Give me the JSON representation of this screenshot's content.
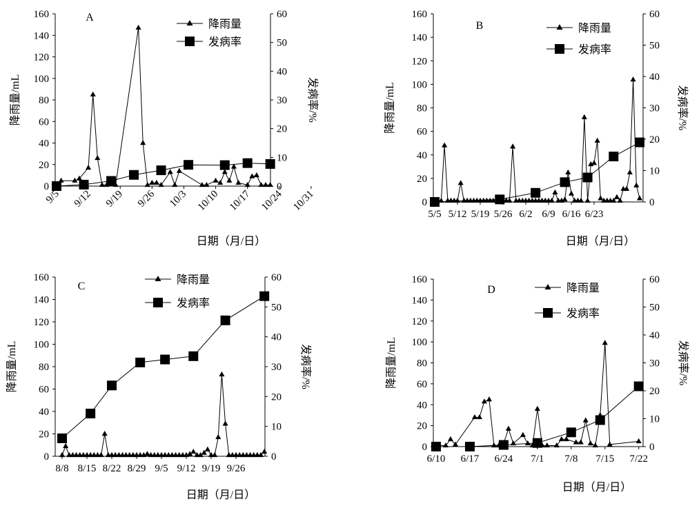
{
  "chart_data": [
    {
      "type": "line",
      "panel_label": "A",
      "xlabel": "日期（月/日）",
      "ylabel": "降雨量/mL",
      "y2label": "发病率/%",
      "ylim": [
        0,
        160
      ],
      "y2lim": [
        0,
        60
      ],
      "yticks": [
        0,
        20,
        40,
        60,
        80,
        100,
        120,
        140,
        160
      ],
      "y2ticks": [
        0,
        10,
        20,
        30,
        40,
        50,
        60
      ],
      "x_tick_labels": [
        "9/5",
        "9/12",
        "9/19",
        "9/26",
        "10/3",
        "10/10",
        "10/17",
        "10/24",
        "10/31"
      ],
      "x_tick_style": "rotated",
      "legend": [
        "降雨量",
        "发病率"
      ],
      "legend_position": "top-right",
      "series": [
        {
          "name": "降雨量",
          "marker": "triangle",
          "axis": "left",
          "points": [
            [
              0,
              1
            ],
            [
              1,
              5
            ],
            [
              4,
              5
            ],
            [
              5,
              7
            ],
            [
              7,
              17
            ],
            [
              8,
              85
            ],
            [
              9,
              26
            ],
            [
              10,
              1
            ],
            [
              11,
              1
            ],
            [
              13,
              1
            ],
            [
              18,
              147
            ],
            [
              19,
              40
            ],
            [
              20,
              1
            ],
            [
              21,
              3
            ],
            [
              22,
              3
            ],
            [
              23,
              1
            ],
            [
              25,
              13
            ],
            [
              26,
              1
            ],
            [
              27,
              14
            ],
            [
              32,
              1
            ],
            [
              33,
              1
            ],
            [
              35,
              5
            ],
            [
              36,
              3
            ],
            [
              37,
              13
            ],
            [
              38,
              5
            ],
            [
              39,
              18
            ],
            [
              40,
              3
            ],
            [
              42,
              1
            ],
            [
              43,
              9
            ],
            [
              44,
              10
            ],
            [
              45,
              1
            ],
            [
              46,
              1
            ],
            [
              47,
              1
            ]
          ]
        },
        {
          "name": "发病率",
          "marker": "square",
          "axis": "right",
          "points": [
            [
              0,
              0
            ],
            [
              6,
              0.5
            ],
            [
              12,
              1.8
            ],
            [
              17,
              3.9
            ],
            [
              23,
              5.5
            ],
            [
              29,
              7.4
            ],
            [
              37,
              7.3
            ],
            [
              42,
              8.0
            ],
            [
              47,
              7.7
            ]
          ]
        }
      ]
    },
    {
      "type": "line",
      "panel_label": "B",
      "xlabel": "日期（月/日）",
      "ylabel": "降雨量/mL",
      "y2label": "发病率/%",
      "ylim": [
        0,
        160
      ],
      "y2lim": [
        0,
        60
      ],
      "yticks": [
        0,
        20,
        40,
        60,
        80,
        100,
        120,
        140,
        160
      ],
      "y2ticks": [
        0,
        10,
        20,
        30,
        40,
        50,
        60
      ],
      "x_tick_labels": [
        "5/5",
        "5/12",
        "5/19",
        "5/26",
        "6/2",
        "6/9",
        "6/16",
        "6/23"
      ],
      "x_tick_style": "horizontal",
      "legend": [
        "降雨量",
        "发病率"
      ],
      "legend_position": "top-right",
      "series": [
        {
          "name": "降雨量",
          "marker": "triangle",
          "axis": "left",
          "points": [
            [
              0,
              1
            ],
            [
              1,
              1
            ],
            [
              2,
              1
            ],
            [
              3,
              48
            ],
            [
              4,
              1
            ],
            [
              5,
              1
            ],
            [
              6,
              1
            ],
            [
              7,
              1
            ],
            [
              8,
              16
            ],
            [
              9,
              1
            ],
            [
              10,
              1
            ],
            [
              11,
              1
            ],
            [
              12,
              1
            ],
            [
              13,
              1
            ],
            [
              14,
              1
            ],
            [
              15,
              1
            ],
            [
              16,
              1
            ],
            [
              17,
              1
            ],
            [
              18,
              1
            ],
            [
              19,
              1
            ],
            [
              20,
              1
            ],
            [
              21,
              1
            ],
            [
              22,
              1
            ],
            [
              23,
              1
            ],
            [
              24,
              47
            ],
            [
              25,
              1
            ],
            [
              26,
              1
            ],
            [
              27,
              1
            ],
            [
              28,
              1
            ],
            [
              29,
              1
            ],
            [
              30,
              1
            ],
            [
              31,
              1
            ],
            [
              32,
              1
            ],
            [
              33,
              1
            ],
            [
              34,
              1
            ],
            [
              35,
              1
            ],
            [
              36,
              1
            ],
            [
              37,
              8
            ],
            [
              38,
              1
            ],
            [
              39,
              1
            ],
            [
              40,
              2
            ],
            [
              41,
              25
            ],
            [
              42,
              7
            ],
            [
              43,
              1
            ],
            [
              44,
              1
            ],
            [
              45,
              1
            ],
            [
              46,
              72
            ],
            [
              47,
              1
            ],
            [
              48,
              32
            ],
            [
              49,
              33
            ],
            [
              50,
              52
            ],
            [
              51,
              3
            ],
            [
              52,
              1
            ],
            [
              53,
              1
            ],
            [
              54,
              1
            ],
            [
              55,
              1
            ],
            [
              56,
              4
            ],
            [
              57,
              1
            ],
            [
              58,
              11
            ],
            [
              59,
              11
            ],
            [
              60,
              25
            ],
            [
              61,
              104
            ],
            [
              62,
              14
            ],
            [
              63,
              3
            ]
          ]
        },
        {
          "name": "发病率",
          "marker": "square",
          "axis": "right",
          "points": [
            [
              0,
              0
            ],
            [
              20,
              0.8
            ],
            [
              31,
              2.9
            ],
            [
              40,
              6.3
            ],
            [
              47,
              7.8
            ],
            [
              55,
              14.5
            ],
            [
              63,
              19.0
            ]
          ]
        }
      ]
    },
    {
      "type": "line",
      "panel_label": "C",
      "xlabel": "日期（月/日）",
      "ylabel": "降雨量/mL",
      "y2label": "发病率/%",
      "ylim": [
        0,
        160
      ],
      "y2lim": [
        0,
        60
      ],
      "yticks": [
        0,
        20,
        40,
        60,
        80,
        100,
        120,
        140,
        160
      ],
      "y2ticks": [
        0,
        10,
        20,
        30,
        40,
        50,
        60
      ],
      "x_tick_labels": [
        "8/8",
        "8/15",
        "8/22",
        "8/29",
        "9/5",
        "9/12",
        "9/19",
        "9/26"
      ],
      "x_tick_style": "horizontal",
      "legend": [
        "降雨量",
        "发病率"
      ],
      "legend_position": "top-center",
      "series": [
        {
          "name": "降雨量",
          "marker": "triangle",
          "axis": "left",
          "points": [
            [
              0,
              1
            ],
            [
              1,
              9
            ],
            [
              2,
              1
            ],
            [
              3,
              1
            ],
            [
              4,
              1
            ],
            [
              5,
              1
            ],
            [
              6,
              1
            ],
            [
              7,
              1
            ],
            [
              8,
              1
            ],
            [
              9,
              1
            ],
            [
              10,
              1
            ],
            [
              11,
              1
            ],
            [
              12,
              20
            ],
            [
              13,
              1
            ],
            [
              14,
              1
            ],
            [
              15,
              1
            ],
            [
              16,
              1
            ],
            [
              17,
              1
            ],
            [
              18,
              1
            ],
            [
              19,
              1
            ],
            [
              20,
              1
            ],
            [
              21,
              1
            ],
            [
              22,
              1
            ],
            [
              23,
              1
            ],
            [
              24,
              2
            ],
            [
              25,
              1
            ],
            [
              26,
              1
            ],
            [
              27,
              1
            ],
            [
              28,
              1
            ],
            [
              29,
              1
            ],
            [
              30,
              1
            ],
            [
              31,
              1
            ],
            [
              32,
              1
            ],
            [
              33,
              1
            ],
            [
              34,
              1
            ],
            [
              35,
              1
            ],
            [
              36,
              2
            ],
            [
              37,
              4
            ],
            [
              38,
              1
            ],
            [
              39,
              1
            ],
            [
              40,
              3
            ],
            [
              41,
              6
            ],
            [
              42,
              1
            ],
            [
              43,
              1
            ],
            [
              44,
              17
            ],
            [
              45,
              73
            ],
            [
              46,
              29
            ],
            [
              47,
              1
            ],
            [
              48,
              1
            ],
            [
              49,
              1
            ],
            [
              50,
              1
            ],
            [
              51,
              1
            ],
            [
              52,
              1
            ],
            [
              53,
              1
            ],
            [
              54,
              1
            ],
            [
              55,
              1
            ],
            [
              56,
              1
            ],
            [
              57,
              4
            ]
          ]
        },
        {
          "name": "发病率",
          "marker": "square",
          "axis": "right",
          "points": [
            [
              0,
              6.0
            ],
            [
              8,
              14.3
            ],
            [
              14,
              23.7
            ],
            [
              22,
              31.4
            ],
            [
              29,
              32.4
            ],
            [
              37,
              33.5
            ],
            [
              46,
              45.5
            ],
            [
              57,
              53.6
            ]
          ]
        }
      ]
    },
    {
      "type": "line",
      "panel_label": "D",
      "xlabel": "日期（月/日）",
      "ylabel": "降雨量/mL",
      "y2label": "发病率/%",
      "ylim": [
        0,
        160
      ],
      "y2lim": [
        0,
        60
      ],
      "yticks": [
        0,
        20,
        40,
        60,
        80,
        100,
        120,
        140,
        160
      ],
      "y2ticks": [
        0,
        10,
        20,
        30,
        40,
        50,
        60
      ],
      "x_tick_labels": [
        "6/10",
        "6/17",
        "6/24",
        "7/1",
        "7/8",
        "7/15",
        "7/22"
      ],
      "x_tick_style": "horizontal",
      "legend": [
        "降雨量",
        "发病率"
      ],
      "legend_position": "top-center",
      "series": [
        {
          "name": "降雨量",
          "marker": "triangle",
          "axis": "left",
          "points": [
            [
              0,
              1
            ],
            [
              2,
              1
            ],
            [
              3,
              7
            ],
            [
              4,
              2
            ],
            [
              8,
              28
            ],
            [
              9,
              28
            ],
            [
              10,
              43
            ],
            [
              11,
              45
            ],
            [
              12,
              1
            ],
            [
              13,
              1
            ],
            [
              14,
              3
            ],
            [
              15,
              17
            ],
            [
              16,
              3
            ],
            [
              18,
              11
            ],
            [
              19,
              3
            ],
            [
              20,
              1
            ],
            [
              21,
              36
            ],
            [
              22,
              1
            ],
            [
              23,
              1
            ],
            [
              25,
              1
            ],
            [
              26,
              7
            ],
            [
              27,
              7
            ],
            [
              29,
              4
            ],
            [
              30,
              4
            ],
            [
              31,
              25
            ],
            [
              32,
              3
            ],
            [
              33,
              1
            ],
            [
              34,
              30
            ],
            [
              35,
              99
            ],
            [
              36,
              2
            ],
            [
              42,
              5
            ]
          ]
        },
        {
          "name": "发病率",
          "marker": "square",
          "axis": "right",
          "points": [
            [
              0,
              0
            ],
            [
              7,
              0
            ],
            [
              14,
              0.6
            ],
            [
              21,
              1.3
            ],
            [
              28,
              5.1
            ],
            [
              34,
              9.5
            ],
            [
              42,
              21.6
            ]
          ]
        }
      ]
    }
  ]
}
